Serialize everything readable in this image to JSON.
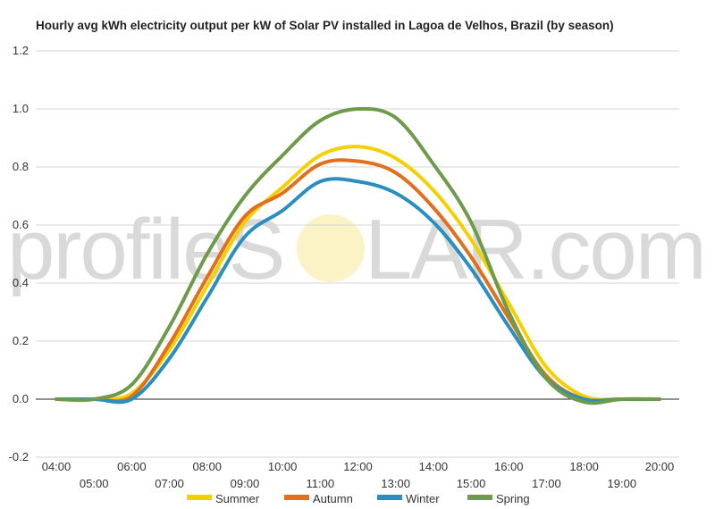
{
  "chart_data": {
    "type": "line",
    "title": "Hourly avg kWh electricity output per kW of Solar PV installed in Lagoa de Velhos, Brazil (by season)",
    "xlabel": "",
    "ylabel": "",
    "x": [
      "04:00",
      "05:00",
      "06:00",
      "07:00",
      "08:00",
      "09:00",
      "10:00",
      "11:00",
      "12:00",
      "13:00",
      "14:00",
      "15:00",
      "16:00",
      "17:00",
      "18:00",
      "19:00",
      "20:00"
    ],
    "ylim": [
      -0.2,
      1.2
    ],
    "yticks": [
      "-0.2",
      "0.0",
      "0.2",
      "0.4",
      "0.6",
      "0.8",
      "1.0",
      "1.2"
    ],
    "grid": true,
    "legend_position": "bottom",
    "series": [
      {
        "name": "Summer",
        "color": "#f5d000",
        "values": [
          0.0,
          0.0,
          0.02,
          0.17,
          0.39,
          0.61,
          0.73,
          0.84,
          0.87,
          0.83,
          0.72,
          0.55,
          0.33,
          0.11,
          0.01,
          0.0,
          0.0
        ]
      },
      {
        "name": "Autumn",
        "color": "#e0701e",
        "values": [
          0.0,
          0.0,
          0.01,
          0.19,
          0.42,
          0.63,
          0.71,
          0.81,
          0.82,
          0.78,
          0.66,
          0.49,
          0.28,
          0.08,
          0.0,
          0.0,
          0.0
        ]
      },
      {
        "name": "Winter",
        "color": "#2a8fbf",
        "values": [
          0.0,
          0.0,
          0.0,
          0.14,
          0.35,
          0.56,
          0.65,
          0.75,
          0.75,
          0.71,
          0.61,
          0.45,
          0.25,
          0.07,
          0.0,
          0.0,
          0.0
        ]
      },
      {
        "name": "Spring",
        "color": "#6e9a4c",
        "values": [
          0.0,
          0.0,
          0.05,
          0.25,
          0.5,
          0.7,
          0.84,
          0.96,
          1.0,
          0.97,
          0.81,
          0.61,
          0.3,
          0.07,
          -0.01,
          0.0,
          0.0
        ]
      }
    ]
  },
  "watermark": {
    "text_left": "profileS",
    "text_right": "LAR.com"
  }
}
